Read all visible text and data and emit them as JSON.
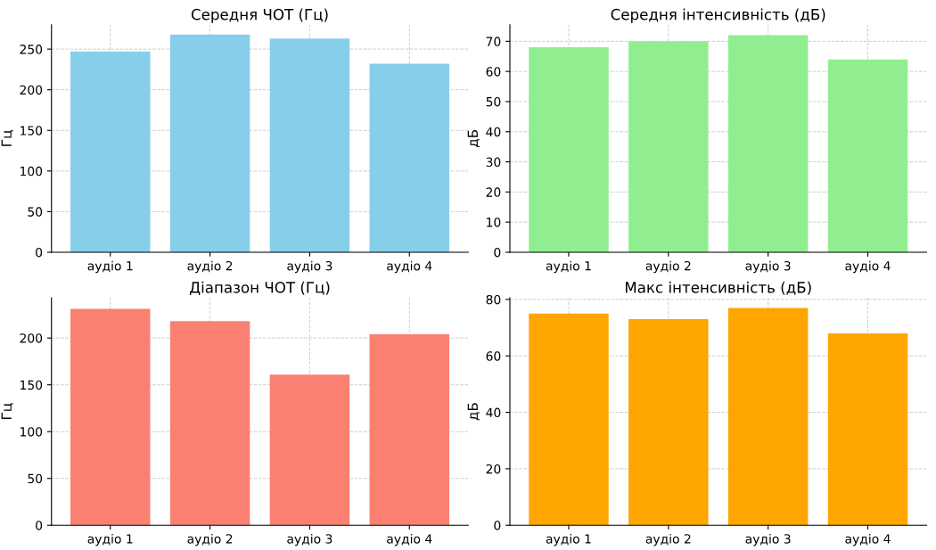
{
  "chart_data": [
    {
      "type": "bar",
      "title": "Середня ЧОТ (Гц)",
      "ylabel": "Гц",
      "categories": [
        "аудіо 1",
        "аудіо 2",
        "аудіо 3",
        "аудіо 4"
      ],
      "values": [
        247,
        268,
        263,
        232
      ],
      "color": "#87ceeb",
      "ylim": [
        0,
        280
      ],
      "yticks": [
        0,
        50,
        100,
        150,
        200,
        250
      ],
      "grid": true
    },
    {
      "type": "bar",
      "title": "Середня інтенсивність (дБ)",
      "ylabel": "дБ",
      "categories": [
        "аудіо 1",
        "аудіо 2",
        "аудіо 3",
        "аудіо 4"
      ],
      "values": [
        68,
        70,
        72,
        64
      ],
      "color": "#90ee90",
      "ylim": [
        0,
        75.5
      ],
      "yticks": [
        0,
        10,
        20,
        30,
        40,
        50,
        60,
        70
      ],
      "grid": true
    },
    {
      "type": "bar",
      "title": "Діапазон ЧОТ (Гц)",
      "ylabel": "Гц",
      "categories": [
        "аудіо 1",
        "аудіо 2",
        "аудіо 3",
        "аудіо 4"
      ],
      "values": [
        231,
        218,
        161,
        204
      ],
      "color": "#fa8072",
      "ylim": [
        0,
        243
      ],
      "yticks": [
        0,
        50,
        100,
        150,
        200
      ],
      "grid": true
    },
    {
      "type": "bar",
      "title": "Макс інтенсивність (дБ)",
      "ylabel": "дБ",
      "categories": [
        "аудіо 1",
        "аудіо 2",
        "аудіо 3",
        "аудіо 4"
      ],
      "values": [
        75,
        73,
        77,
        68
      ],
      "color": "#ffa500",
      "ylim": [
        0,
        80.6
      ],
      "yticks": [
        0,
        20,
        40,
        60,
        80
      ],
      "grid": true
    }
  ]
}
